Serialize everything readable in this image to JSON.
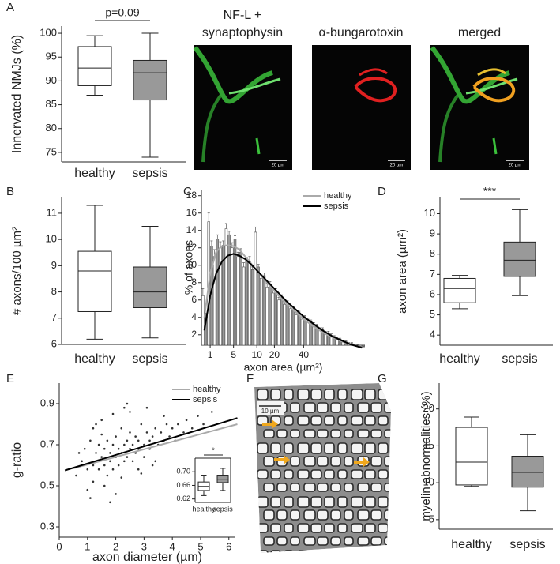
{
  "panel_labels": [
    "A",
    "B",
    "C",
    "D",
    "E",
    "F",
    "G"
  ],
  "images": [
    {
      "title_lines": [
        "NF-L +",
        "synaptophysin"
      ],
      "scale_bar": "20 µm"
    },
    {
      "title_lines": [
        "α-bungarotoxin"
      ],
      "scale_bar": "20 µm"
    },
    {
      "title_lines": [
        "merged"
      ],
      "scale_bar": "20 µm"
    }
  ],
  "em_image": {
    "scale_bar": "10 µm"
  },
  "chart_data": [
    {
      "type": "box",
      "ylabel": "Innervated NMJs (%)",
      "categories": [
        "healthy",
        "sepsis"
      ],
      "colors": [
        "#ffffff",
        "#999999"
      ],
      "boxes": [
        {
          "min": 87,
          "q1": 89,
          "median": 92.7,
          "q3": 97.2,
          "max": 99.5
        },
        {
          "min": 74,
          "q1": 86,
          "median": 91.7,
          "q3": 94.3,
          "max": 100
        }
      ],
      "ylim": [
        73,
        101.5
      ],
      "yticks": [
        75,
        80,
        85,
        90,
        95,
        100
      ],
      "annotation": "p=0.09"
    },
    {
      "type": "box",
      "ylabel": "# axons/100 µm²",
      "categories": [
        "healthy",
        "sepsis"
      ],
      "colors": [
        "#ffffff",
        "#999999"
      ],
      "boxes": [
        {
          "min": 6.2,
          "q1": 7.25,
          "median": 8.8,
          "q3": 9.55,
          "max": 11.3
        },
        {
          "min": 6.25,
          "q1": 7.4,
          "median": 8.0,
          "q3": 8.95,
          "max": 10.5
        }
      ],
      "ylim": [
        6,
        11.6
      ],
      "yticks": [
        6,
        7,
        8,
        9,
        10,
        11
      ]
    },
    {
      "type": "bar",
      "ylabel": "% of axons",
      "xlabel": "axon area (µm²)",
      "legend": "upper right",
      "categories": [
        null,
        "1",
        null,
        null,
        null,
        "5",
        null,
        null,
        null,
        "10",
        null,
        null,
        "20",
        null,
        null,
        null,
        null,
        "40",
        null,
        null,
        null,
        null,
        null,
        null,
        null,
        null,
        null,
        null
      ],
      "series": [
        {
          "name": "healthy",
          "color": "#ffffff",
          "line_color": "#aaaaaa",
          "values": [
            6.5,
            15,
            11,
            12,
            14.2,
            12,
            11,
            9.8,
            10.5,
            13.8,
            8.5,
            7.5,
            6.8,
            6,
            5.5,
            5,
            4.3,
            3.8,
            3.6,
            3.2,
            2.6,
            2.2,
            1.9,
            1.5,
            1.2,
            1.0,
            0.8,
            0.6
          ],
          "errors": [
            0.8,
            1,
            0.8,
            0.7,
            0.6,
            0.6,
            0.5,
            0.5,
            0.5,
            0.6,
            0.4,
            0.4,
            0.4,
            0.3,
            0.3,
            0.3,
            0.3,
            0.3,
            0.2,
            0.2,
            0.2,
            0.2,
            0.2,
            0.2,
            0.2,
            0.1,
            0.1,
            0.1
          ],
          "fit": [
            4,
            9,
            11.5,
            12.2,
            12.3,
            12.2,
            11.8,
            11,
            10.2,
            9.4,
            8.6,
            7.8,
            7,
            6.3,
            5.6,
            5,
            4.4,
            3.8,
            3.3,
            2.8,
            2.4,
            2,
            1.7,
            1.4,
            1.1,
            0.9,
            0.7,
            0.5
          ]
        },
        {
          "name": "sepsis",
          "color": "#999999",
          "line_color": "#000000",
          "values": [
            4,
            12.2,
            13,
            12.3,
            13.5,
            13,
            11.5,
            10.5,
            9.5,
            9.8,
            8.8,
            7.8,
            7,
            6.3,
            5.7,
            5,
            4.5,
            4,
            3.5,
            3,
            2.6,
            2.2,
            1.8,
            1.5,
            1.2,
            1,
            0.8,
            0.6
          ],
          "errors": [
            0.5,
            0.6,
            0.5,
            0.5,
            0.4,
            0.4,
            0.4,
            0.4,
            0.3,
            0.3,
            0.3,
            0.3,
            0.3,
            0.3,
            0.2,
            0.2,
            0.2,
            0.2,
            0.2,
            0.2,
            0.2,
            0.2,
            0.1,
            0.1,
            0.1,
            0.1,
            0.1,
            0.1
          ],
          "fit": [
            2.5,
            6.5,
            9,
            10.4,
            11.1,
            11.3,
            11.1,
            10.7,
            10.1,
            9.4,
            8.7,
            8,
            7.3,
            6.6,
            5.9,
            5.3,
            4.7,
            4.1,
            3.6,
            3.1,
            2.6,
            2.2,
            1.8,
            1.5,
            1.2,
            0.9,
            0.7,
            0.5
          ]
        }
      ],
      "ylim": [
        0.8,
        18.7
      ],
      "yticks": [
        2,
        4,
        6,
        8,
        10,
        12,
        14,
        16,
        18
      ]
    },
    {
      "type": "box",
      "ylabel": "axon area (µm²)",
      "categories": [
        "healthy",
        "sepsis"
      ],
      "colors": [
        "#ffffff",
        "#999999"
      ],
      "boxes": [
        {
          "min": 5.3,
          "q1": 5.6,
          "median": 6.3,
          "q3": 6.8,
          "max": 6.95
        },
        {
          "min": 5.95,
          "q1": 6.9,
          "median": 7.7,
          "q3": 8.6,
          "max": 10.2
        }
      ],
      "ylim": [
        3.5,
        10.8
      ],
      "yticks": [
        4,
        5,
        6,
        7,
        8,
        9,
        10
      ],
      "annotation": "***"
    },
    {
      "type": "scatter",
      "ylabel": "g-ratio",
      "xlabel": "axon diameter (µm)",
      "legend": "upper right",
      "color": "#333333",
      "x": [
        0.6,
        0.8,
        0.9,
        1.0,
        1.1,
        1.2,
        1.2,
        1.3,
        1.4,
        1.4,
        1.5,
        1.5,
        1.6,
        1.6,
        1.7,
        1.7,
        1.8,
        1.8,
        1.9,
        1.9,
        2.0,
        2.0,
        2.1,
        2.1,
        2.2,
        2.2,
        2.3,
        2.3,
        2.4,
        2.4,
        2.5,
        2.5,
        2.6,
        2.6,
        2.7,
        2.7,
        2.8,
        2.8,
        2.9,
        3.0,
        3.0,
        3.1,
        3.2,
        3.2,
        3.3,
        3.4,
        3.5,
        3.6,
        3.7,
        3.8,
        3.9,
        4.0,
        4.1,
        4.2,
        4.4,
        4.5,
        4.7,
        4.9,
        5.1,
        5.4,
        1.0,
        1.3,
        1.6,
        1.9,
        2.2,
        2.5,
        2.8,
        3.1,
        3.4,
        3.7,
        0.7,
        1.1,
        1.5,
        2.0,
        2.4,
        2.9,
        3.3,
        1.2,
        1.8,
        2.3
      ],
      "values": [
        0.55,
        0.62,
        0.68,
        0.58,
        0.72,
        0.6,
        0.52,
        0.66,
        0.7,
        0.58,
        0.64,
        0.75,
        0.6,
        0.68,
        0.55,
        0.72,
        0.66,
        0.62,
        0.7,
        0.58,
        0.74,
        0.64,
        0.68,
        0.6,
        0.78,
        0.66,
        0.7,
        0.62,
        0.72,
        0.64,
        0.68,
        0.76,
        0.7,
        0.62,
        0.74,
        0.66,
        0.72,
        0.68,
        0.8,
        0.7,
        0.64,
        0.76,
        0.72,
        0.68,
        0.74,
        0.78,
        0.7,
        0.76,
        0.72,
        0.8,
        0.74,
        0.78,
        0.72,
        0.8,
        0.76,
        0.82,
        0.78,
        0.84,
        0.8,
        0.86,
        0.48,
        0.8,
        0.5,
        0.85,
        0.54,
        0.86,
        0.58,
        0.88,
        0.62,
        0.84,
        0.66,
        0.44,
        0.82,
        0.46,
        0.9,
        0.56,
        0.6,
        0.78,
        0.42,
        0.88
      ],
      "lines": [
        {
          "name": "healthy",
          "color": "#aaaaaa",
          "x": [
            0.5,
            6.3
          ],
          "values": [
            0.585,
            0.8
          ]
        },
        {
          "name": "sepsis",
          "color": "#000000",
          "x": [
            0.2,
            6.3
          ],
          "values": [
            0.575,
            0.83
          ]
        }
      ],
      "xlim": [
        0,
        6.23
      ],
      "xticks": [
        0,
        1,
        2,
        3,
        4,
        5,
        6
      ],
      "ylim": [
        0.25,
        1.0
      ],
      "yticks": [
        0.3,
        0.5,
        0.7,
        0.9
      ]
    },
    {
      "type": "box",
      "categories": [
        "healthy",
        "sepsis"
      ],
      "colors": [
        "#ffffff",
        "#999999"
      ],
      "boxes": [
        {
          "min": 0.63,
          "q1": 0.645,
          "median": 0.657,
          "q3": 0.67,
          "max": 0.69
        },
        {
          "min": 0.645,
          "q1": 0.668,
          "median": 0.678,
          "q3": 0.69,
          "max": 0.71
        }
      ],
      "ylim": [
        0.61,
        0.74
      ],
      "yticks": [
        0.62,
        0.66,
        {
          "value": 0.7,
          "label": "0.70"
        }
      ],
      "annotation": "*"
    },
    {
      "type": "box",
      "ylabel": "myelin abnormalities (%)",
      "categories": [
        "healthy",
        "sepsis"
      ],
      "colors": [
        "#ffffff",
        "#999999"
      ],
      "boxes": [
        {
          "min": 9.5,
          "q1": 9.7,
          "median": 12.8,
          "q3": 17.5,
          "max": 18.9
        },
        {
          "min": 6.2,
          "q1": 9.4,
          "median": 11.4,
          "q3": 13.6,
          "max": 16.5
        }
      ],
      "ylim": [
        3.7,
        23.5
      ],
      "yticks": [
        5,
        10,
        15,
        20
      ]
    }
  ]
}
